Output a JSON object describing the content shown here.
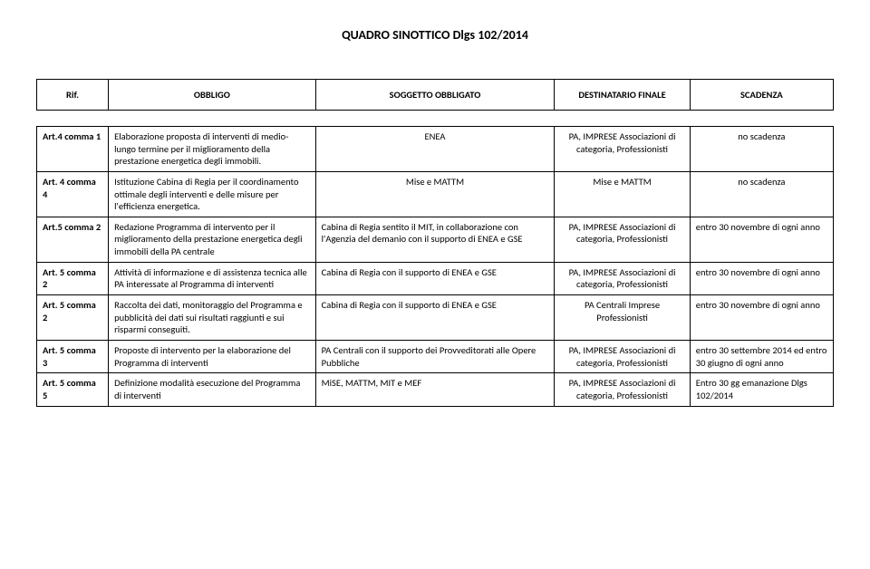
{
  "title": "QUADRO SINOTTICO Dlgs 102/2014",
  "headers": {
    "rif": "Rif.",
    "obbligo": "OBBLIGO",
    "soggetto": "SOGGETTO OBBLIGATO",
    "destinatario": "DESTINATARIO FINALE",
    "scadenza": "SCADENZA"
  },
  "rows": [
    {
      "rif": "Art.4 comma 1",
      "obbligo": "Elaborazione proposta di interventi di medio-lungo termine per il miglioramento della prestazione energetica degli immobili.",
      "soggetto": "ENEA",
      "destinatario": "PA, IMPRESE Associazioni di categoria, Professionisti",
      "scadenza": "no scadenza"
    },
    {
      "rif": "Art. 4 comma 4",
      "obbligo": "Istituzione Cabina di Regia  per il coordinamento ottimale degli interventi e delle misure per l'efficienza energetica.",
      "soggetto": "Mise e MATTM",
      "destinatario": "Mise e MATTM",
      "scadenza": "no scadenza"
    },
    {
      "rif": "Art.5 comma 2",
      "obbligo": "Redazione Programma di intervento per il miglioramento della prestazione energetica degli immobili della PA centrale",
      "soggetto": "Cabina di Regia sentito il MIT, in collaborazione con l'Agenzia del demanio  con il supporto di ENEA e GSE",
      "destinatario": "PA, IMPRESE Associazioni di categoria, Professionisti",
      "scadenza": "entro 30 novembre di ogni anno"
    },
    {
      "rif": "Art. 5 comma 2",
      "obbligo": "Attività di informazione e di assistenza tecnica alle PA interessate al Programma di interventi",
      "soggetto": "Cabina di Regia con il supporto di ENEA e GSE",
      "destinatario": "PA, IMPRESE Associazioni di categoria, Professionisti",
      "scadenza": "entro 30 novembre di ogni anno"
    },
    {
      "rif": "Art. 5 comma 2",
      "obbligo": "Raccolta dei dati, monitoraggio del Programma e pubblicità dei dati sui risultati raggiunti e sui risparmi conseguiti.",
      "soggetto": "Cabina di Regia con il supporto di ENEA e GSE",
      "destinatario": "PA Centrali Imprese Professionisti",
      "scadenza": "entro 30 novembre di ogni anno"
    },
    {
      "rif": "Art. 5 comma 3",
      "obbligo": "Proposte di intervento per la elaborazione del Programma di interventi",
      "soggetto": "PA Centrali con il supporto dei Provveditorati alle Opere Pubbliche",
      "destinatario": "PA, IMPRESE Associazioni di categoria, Professionisti",
      "scadenza": "entro 30 settembre 2014 ed entro 30 giugno di ogni anno"
    },
    {
      "rif": "Art. 5 comma 5",
      "obbligo": "Definizione modalità esecuzione del Programma di interventi",
      "soggetto": "MiSE, MATTM, MIT e MEF",
      "destinatario": "PA, IMPRESE Associazioni di categoria, Professionisti",
      "scadenza": "Entro 30 gg emanazione Dlgs 102/2014"
    }
  ]
}
